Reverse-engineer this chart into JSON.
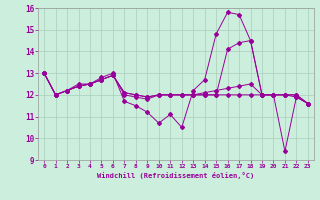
{
  "title": "",
  "xlabel": "Windchill (Refroidissement éolien,°C)",
  "background_color": "#cceedd",
  "line_color": "#990099",
  "grid_color": "#aaccbb",
  "spine_color": "#999999",
  "xlim": [
    -0.5,
    23.5
  ],
  "ylim": [
    9,
    16
  ],
  "yticks": [
    9,
    10,
    11,
    12,
    13,
    14,
    15,
    16
  ],
  "xticks": [
    0,
    1,
    2,
    3,
    4,
    5,
    6,
    7,
    8,
    9,
    10,
    11,
    12,
    13,
    14,
    15,
    16,
    17,
    18,
    19,
    20,
    21,
    22,
    23
  ],
  "series": [
    [
      13.0,
      12.0,
      12.2,
      12.5,
      12.5,
      12.8,
      13.0,
      11.7,
      11.5,
      11.2,
      10.7,
      11.1,
      10.5,
      12.2,
      12.7,
      14.8,
      15.8,
      15.7,
      14.5,
      12.0,
      12.0,
      9.4,
      11.9,
      11.6
    ],
    [
      13.0,
      12.0,
      12.2,
      12.4,
      12.5,
      12.7,
      12.9,
      12.0,
      11.9,
      11.8,
      12.0,
      12.0,
      12.0,
      12.0,
      12.0,
      12.0,
      14.1,
      14.4,
      14.5,
      12.0,
      12.0,
      12.0,
      11.9,
      11.6
    ],
    [
      13.0,
      12.0,
      12.2,
      12.4,
      12.5,
      12.7,
      12.9,
      12.1,
      12.0,
      11.9,
      12.0,
      12.0,
      12.0,
      12.0,
      12.0,
      12.0,
      12.0,
      12.0,
      12.0,
      12.0,
      12.0,
      12.0,
      12.0,
      11.6
    ],
    [
      13.0,
      12.0,
      12.2,
      12.4,
      12.5,
      12.7,
      12.9,
      12.1,
      12.0,
      11.9,
      12.0,
      12.0,
      12.0,
      12.0,
      12.1,
      12.2,
      12.3,
      12.4,
      12.5,
      12.0,
      12.0,
      12.0,
      12.0,
      11.6
    ]
  ]
}
